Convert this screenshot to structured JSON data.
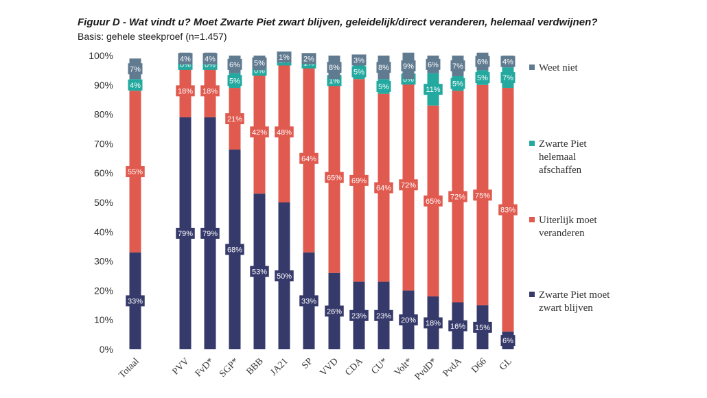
{
  "header": {
    "title": "Figuur D - Wat vindt u? Moet Zwarte Piet zwart blijven, geleidelijk/direct veranderen, helemaal verdwijnen?",
    "subtitle": "Basis: gehele steekproef (n=1.457)"
  },
  "chart_data": {
    "type": "bar",
    "stacked": true,
    "title": "Figuur D - Wat vindt u? Moet Zwarte Piet zwart blijven, geleidelijk/direct veranderen, helemaal verdwijnen?",
    "subtitle": "Basis: gehele steekproef (n=1.457)",
    "ylim": [
      0,
      100
    ],
    "yticks": [
      "0%",
      "10%",
      "20%",
      "30%",
      "40%",
      "50%",
      "60%",
      "70%",
      "80%",
      "90%",
      "100%"
    ],
    "categories": [
      "Totaal",
      "PVV",
      "FvD*",
      "SGP*",
      "BBB",
      "JA21",
      "SP",
      "VVD",
      "CDA",
      "CU*",
      "Volt*",
      "PvdD*",
      "PvdA",
      "D66",
      "GL"
    ],
    "series": [
      {
        "name": "Zwarte Piet moet zwart blijven",
        "color": "#363a6b",
        "values": [
          33,
          79,
          79,
          68,
          53,
          50,
          33,
          26,
          23,
          23,
          20,
          18,
          16,
          15,
          6
        ]
      },
      {
        "name": "Uiterlijk moet veranderen",
        "color": "#e05a4f",
        "values": [
          55,
          18,
          18,
          21,
          42,
          48,
          64,
          65,
          69,
          64,
          72,
          65,
          72,
          75,
          83
        ]
      },
      {
        "name": "Zwarte Piet helemaal afschaffen",
        "color": "#23a99f",
        "values": [
          4,
          0,
          0,
          5,
          0,
          1,
          1,
          1,
          5,
          5,
          0,
          11,
          5,
          5,
          7
        ]
      },
      {
        "name": "Weet niet",
        "color": "#607a90",
        "values": [
          7,
          4,
          4,
          6,
          5,
          1,
          2,
          8,
          3,
          8,
          9,
          6,
          7,
          6,
          4
        ]
      }
    ],
    "legend": [
      {
        "label": "Weet niet",
        "color": "#607a90"
      },
      {
        "label": "Zwarte Piet helemaal afschaffen",
        "color": "#23a99f"
      },
      {
        "label": "Uiterlijk moet veranderen",
        "color": "#e05a4f"
      },
      {
        "label": "Zwarte Piet moet zwart blijven",
        "color": "#363a6b"
      }
    ],
    "legend_position": "right"
  }
}
